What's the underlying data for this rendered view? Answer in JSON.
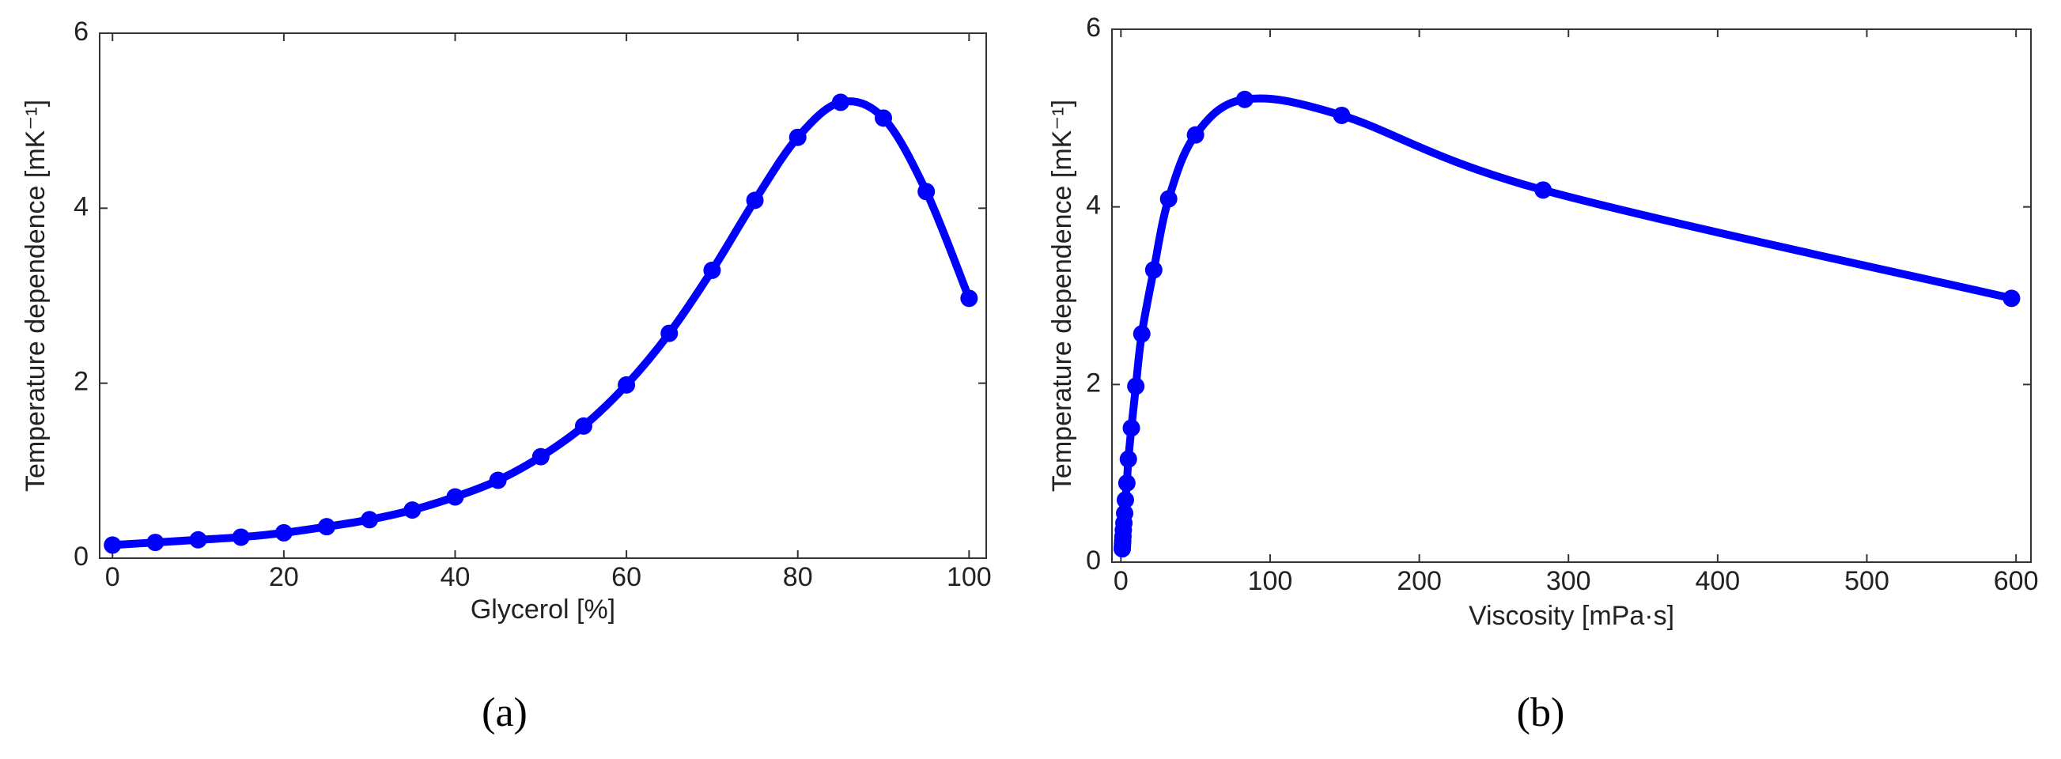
{
  "chart_data": [
    {
      "type": "line",
      "x_label": "Glycerol [%]",
      "y_label": "Temperature dependence [mK⁻¹]",
      "caption": "(a)",
      "x": [
        0,
        5,
        10,
        15,
        20,
        25,
        30,
        35,
        40,
        45,
        50,
        55,
        60,
        65,
        70,
        75,
        80,
        85,
        90,
        95,
        100
      ],
      "series": [
        {
          "color": "#0000ff",
          "values": [
            0.15,
            0.18,
            0.21,
            0.24,
            0.29,
            0.36,
            0.44,
            0.55,
            0.7,
            0.89,
            1.16,
            1.51,
            1.98,
            2.57,
            3.29,
            4.09,
            4.81,
            5.21,
            5.03,
            4.19,
            2.97
          ]
        }
      ],
      "xlim": [
        -1.5,
        102
      ],
      "xticks": [
        0,
        20,
        40,
        60,
        80,
        100
      ],
      "ylim": [
        0,
        6
      ],
      "yticks": [
        0,
        2,
        4,
        6
      ]
    },
    {
      "type": "line",
      "x_label": "Viscosity [mPa·s]",
      "y_label": "Temperature dependence [mK⁻¹]",
      "caption": "(b)",
      "x": [
        0.9,
        1.0,
        1.1,
        1.2,
        1.4,
        1.6,
        2,
        2.5,
        3,
        4,
        5,
        7,
        10,
        14,
        22,
        32,
        50,
        83,
        148,
        283,
        597
      ],
      "series": [
        {
          "color": "#0000ff",
          "values": [
            0.15,
            0.18,
            0.21,
            0.24,
            0.29,
            0.36,
            0.44,
            0.55,
            0.7,
            0.89,
            1.16,
            1.51,
            1.98,
            2.57,
            3.29,
            4.09,
            4.81,
            5.21,
            5.03,
            4.19,
            2.97
          ]
        }
      ],
      "xlim": [
        -6,
        610
      ],
      "xticks": [
        0,
        100,
        200,
        300,
        400,
        500,
        600
      ],
      "ylim": [
        0,
        6
      ],
      "yticks": [
        0,
        2,
        4,
        6
      ]
    }
  ]
}
